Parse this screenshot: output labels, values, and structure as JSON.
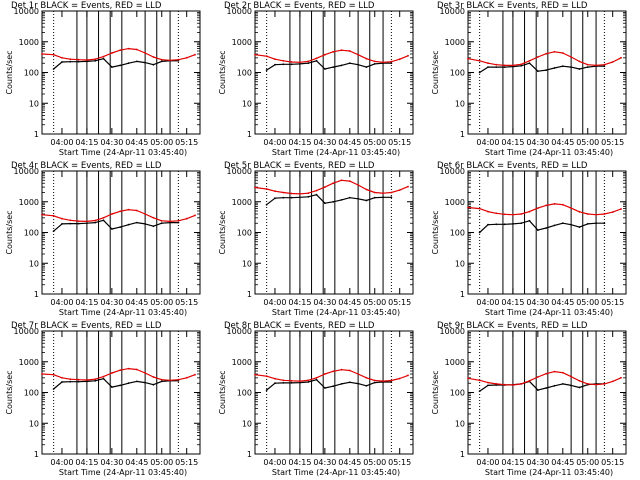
{
  "figure": {
    "colors": {
      "events": "#000000",
      "lld": "#e00000",
      "axes": "#000000"
    },
    "event_markers": [
      "04:09",
      "04:15",
      "04:22",
      "04:29",
      "04:36",
      "04:50",
      "04:57",
      "05:05"
    ],
    "dotted_markers": [
      "03:55",
      "05:10"
    ]
  },
  "chart_data": [
    {
      "type": "line",
      "log_y": true,
      "title": "Det 1r BLACK = Events, RED = LLD",
      "ylabel": "Counts/sec",
      "xlabel": "Start Time (24-Apr-11 03:45:40)",
      "ylim": [
        1,
        10000
      ],
      "xlim": [
        "03:48",
        "05:23"
      ],
      "yticks": [
        "1",
        "10",
        "100",
        "1000",
        "10000"
      ],
      "xticks": [
        "04:00",
        "04:15",
        "04:30",
        "04:45",
        "05:00",
        "05:15"
      ],
      "series": [
        {
          "name": "Events",
          "color": "#000000",
          "x": [
            "03:55",
            "04:00",
            "04:05",
            "04:10",
            "04:15",
            "04:20",
            "04:25",
            "04:30",
            "04:35",
            "04:40",
            "04:45",
            "04:50",
            "04:55",
            "05:00",
            "05:05",
            "05:10"
          ],
          "y": [
            130,
            220,
            225,
            225,
            230,
            240,
            280,
            150,
            170,
            200,
            230,
            210,
            180,
            230,
            240,
            240
          ]
        },
        {
          "name": "LLD",
          "color": "#e00000",
          "x": [
            "03:48",
            "03:55",
            "04:00",
            "04:05",
            "04:10",
            "04:15",
            "04:20",
            "04:25",
            "04:30",
            "04:35",
            "04:40",
            "04:45",
            "04:50",
            "04:55",
            "05:00",
            "05:05",
            "05:10",
            "05:15",
            "05:20"
          ],
          "y": [
            400,
            380,
            300,
            270,
            260,
            255,
            270,
            330,
            430,
            530,
            600,
            560,
            430,
            320,
            260,
            250,
            260,
            300,
            380
          ]
        }
      ]
    },
    {
      "type": "line",
      "log_y": true,
      "title": "Det 2r BLACK = Events, RED = LLD",
      "ylabel": "Counts/sec",
      "xlabel": "Start Time (24-Apr-11 03:45:40)",
      "ylim": [
        1,
        10000
      ],
      "xlim": [
        "03:48",
        "05:23"
      ],
      "yticks": [
        "1",
        "10",
        "100",
        "1000",
        "10000"
      ],
      "xticks": [
        "04:00",
        "04:15",
        "04:30",
        "04:45",
        "05:00",
        "05:15"
      ],
      "series": [
        {
          "name": "Events",
          "color": "#000000",
          "x": [
            "03:55",
            "04:00",
            "04:05",
            "04:10",
            "04:15",
            "04:20",
            "04:25",
            "04:30",
            "04:35",
            "04:40",
            "04:45",
            "04:50",
            "04:55",
            "05:00",
            "05:05",
            "05:10"
          ],
          "y": [
            120,
            180,
            185,
            185,
            190,
            200,
            240,
            130,
            150,
            170,
            200,
            180,
            150,
            190,
            200,
            200
          ]
        },
        {
          "name": "LLD",
          "color": "#e00000",
          "x": [
            "03:48",
            "03:55",
            "04:00",
            "04:05",
            "04:10",
            "04:15",
            "04:20",
            "04:25",
            "04:30",
            "04:35",
            "04:40",
            "04:45",
            "04:50",
            "04:55",
            "05:00",
            "05:05",
            "05:10",
            "05:15",
            "05:20"
          ],
          "y": [
            380,
            340,
            270,
            240,
            220,
            215,
            230,
            290,
            380,
            470,
            530,
            500,
            380,
            280,
            230,
            215,
            225,
            270,
            350
          ]
        }
      ]
    },
    {
      "type": "line",
      "log_y": true,
      "title": "Det 3r BLACK = Events, RED = LLD",
      "ylabel": "Counts/sec",
      "xlabel": "Start Time (24-Apr-11 03:45:40)",
      "ylim": [
        1,
        10000
      ],
      "xlim": [
        "03:48",
        "05:23"
      ],
      "yticks": [
        "1",
        "10",
        "100",
        "1000",
        "10000"
      ],
      "xticks": [
        "04:00",
        "04:15",
        "04:30",
        "04:45",
        "05:00",
        "05:15"
      ],
      "series": [
        {
          "name": "Events",
          "color": "#000000",
          "x": [
            "03:55",
            "04:00",
            "04:05",
            "04:10",
            "04:15",
            "04:20",
            "04:25",
            "04:30",
            "04:35",
            "04:40",
            "04:45",
            "04:50",
            "04:55",
            "05:00",
            "05:05",
            "05:10"
          ],
          "y": [
            100,
            150,
            150,
            150,
            155,
            165,
            200,
            110,
            120,
            140,
            160,
            150,
            130,
            150,
            160,
            160
          ]
        },
        {
          "name": "LLD",
          "color": "#e00000",
          "x": [
            "03:48",
            "03:55",
            "04:00",
            "04:05",
            "04:10",
            "04:15",
            "04:20",
            "04:25",
            "04:30",
            "04:35",
            "04:40",
            "04:45",
            "04:50",
            "04:55",
            "05:00",
            "05:05",
            "05:10",
            "05:15",
            "05:20"
          ],
          "y": [
            280,
            240,
            200,
            180,
            170,
            170,
            185,
            240,
            320,
            410,
            470,
            430,
            320,
            230,
            180,
            170,
            180,
            220,
            300
          ]
        }
      ]
    },
    {
      "type": "line",
      "log_y": true,
      "title": "Det 4r BLACK = Events, RED = LLD",
      "ylabel": "Counts/sec",
      "xlabel": "Start Time (24-Apr-11 03:45:40)",
      "ylim": [
        1,
        10000
      ],
      "xlim": [
        "03:48",
        "05:23"
      ],
      "yticks": [
        "1",
        "10",
        "100",
        "1000",
        "10000"
      ],
      "xticks": [
        "04:00",
        "04:15",
        "04:30",
        "04:45",
        "05:00",
        "05:15"
      ],
      "series": [
        {
          "name": "Events",
          "color": "#000000",
          "x": [
            "03:55",
            "04:00",
            "04:05",
            "04:10",
            "04:15",
            "04:20",
            "04:25",
            "04:30",
            "04:35",
            "04:40",
            "04:45",
            "04:50",
            "04:55",
            "05:00",
            "05:05",
            "05:10"
          ],
          "y": [
            110,
            190,
            195,
            195,
            200,
            210,
            250,
            130,
            150,
            180,
            210,
            190,
            160,
            200,
            210,
            210
          ]
        },
        {
          "name": "LLD",
          "color": "#e00000",
          "x": [
            "03:48",
            "03:55",
            "04:00",
            "04:05",
            "04:10",
            "04:15",
            "04:20",
            "04:25",
            "04:30",
            "04:35",
            "04:40",
            "04:45",
            "04:50",
            "04:55",
            "05:00",
            "05:05",
            "05:10",
            "05:15",
            "05:20"
          ],
          "y": [
            380,
            350,
            280,
            250,
            235,
            230,
            245,
            300,
            400,
            490,
            550,
            520,
            400,
            300,
            240,
            230,
            240,
            280,
            360
          ]
        }
      ]
    },
    {
      "type": "line",
      "log_y": true,
      "title": "Det 5r BLACK = Events, RED = LLD",
      "ylabel": "Counts/sec",
      "xlabel": "Start Time (24-Apr-11 03:45:40)",
      "ylim": [
        1,
        10000
      ],
      "xlim": [
        "03:48",
        "05:23"
      ],
      "yticks": [
        "1",
        "10",
        "100",
        "1000",
        "10000"
      ],
      "xticks": [
        "04:00",
        "04:15",
        "04:30",
        "04:45",
        "05:00",
        "05:15"
      ],
      "series": [
        {
          "name": "Events",
          "color": "#000000",
          "x": [
            "03:55",
            "04:00",
            "04:05",
            "04:10",
            "04:15",
            "04:20",
            "04:25",
            "04:30",
            "04:35",
            "04:40",
            "04:45",
            "04:50",
            "04:55",
            "05:00",
            "05:05",
            "05:10"
          ],
          "y": [
            800,
            1300,
            1350,
            1350,
            1400,
            1450,
            1700,
            900,
            1000,
            1150,
            1350,
            1250,
            1100,
            1350,
            1400,
            1400
          ]
        },
        {
          "name": "LLD",
          "color": "#e00000",
          "x": [
            "03:48",
            "03:55",
            "04:00",
            "04:05",
            "04:10",
            "04:15",
            "04:20",
            "04:25",
            "04:30",
            "04:35",
            "04:40",
            "04:45",
            "04:50",
            "04:55",
            "05:00",
            "05:05",
            "05:10",
            "05:15",
            "05:20"
          ],
          "y": [
            2900,
            2600,
            2200,
            2000,
            1850,
            1800,
            1900,
            2300,
            3000,
            4000,
            5000,
            4700,
            3500,
            2500,
            2000,
            1900,
            2000,
            2400,
            3100
          ]
        }
      ]
    },
    {
      "type": "line",
      "log_y": true,
      "title": "Det 6r BLACK = Events, RED = LLD",
      "ylabel": "Counts/sec",
      "xlabel": "Start Time (24-Apr-11 03:45:40)",
      "ylim": [
        1,
        10000
      ],
      "xlim": [
        "03:48",
        "05:23"
      ],
      "yticks": [
        "1",
        "10",
        "100",
        "1000",
        "10000"
      ],
      "xticks": [
        "04:00",
        "04:15",
        "04:30",
        "04:45",
        "05:00",
        "05:15"
      ],
      "series": [
        {
          "name": "Events",
          "color": "#000000",
          "x": [
            "03:55",
            "04:00",
            "04:05",
            "04:10",
            "04:15",
            "04:20",
            "04:25",
            "04:30",
            "04:35",
            "04:40",
            "04:45",
            "04:50",
            "04:55",
            "05:00",
            "05:05",
            "05:10"
          ],
          "y": [
            100,
            180,
            185,
            185,
            190,
            200,
            240,
            120,
            140,
            170,
            200,
            180,
            150,
            190,
            200,
            200
          ]
        },
        {
          "name": "LLD",
          "color": "#e00000",
          "x": [
            "03:48",
            "03:55",
            "04:00",
            "04:05",
            "04:10",
            "04:15",
            "04:20",
            "04:25",
            "04:30",
            "04:35",
            "04:40",
            "04:45",
            "04:50",
            "04:55",
            "05:00",
            "05:05",
            "05:10",
            "05:15",
            "05:20"
          ],
          "y": [
            650,
            600,
            480,
            420,
            390,
            380,
            400,
            480,
            620,
            760,
            850,
            800,
            620,
            470,
            400,
            380,
            400,
            460,
            580
          ]
        }
      ]
    },
    {
      "type": "line",
      "log_y": true,
      "title": "Det 7r BLACK = Events, RED = LLD",
      "ylabel": "Counts/sec",
      "xlabel": "Start Time (24-Apr-11 03:45:40)",
      "ylim": [
        1,
        10000
      ],
      "xlim": [
        "03:48",
        "05:23"
      ],
      "yticks": [
        "1",
        "10",
        "100",
        "1000",
        "10000"
      ],
      "xticks": [
        "04:00",
        "04:15",
        "04:30",
        "04:45",
        "05:00",
        "05:15"
      ],
      "series": [
        {
          "name": "Events",
          "color": "#000000",
          "x": [
            "03:55",
            "04:00",
            "04:05",
            "04:10",
            "04:15",
            "04:20",
            "04:25",
            "04:30",
            "04:35",
            "04:40",
            "04:45",
            "04:50",
            "04:55",
            "05:00",
            "05:05",
            "05:10"
          ],
          "y": [
            130,
            220,
            225,
            225,
            230,
            240,
            280,
            150,
            170,
            200,
            230,
            210,
            180,
            230,
            240,
            240
          ]
        },
        {
          "name": "LLD",
          "color": "#e00000",
          "x": [
            "03:48",
            "03:55",
            "04:00",
            "04:05",
            "04:10",
            "04:15",
            "04:20",
            "04:25",
            "04:30",
            "04:35",
            "04:40",
            "04:45",
            "04:50",
            "04:55",
            "05:00",
            "05:05",
            "05:10",
            "05:15",
            "05:20"
          ],
          "y": [
            400,
            380,
            300,
            270,
            260,
            255,
            270,
            330,
            430,
            530,
            600,
            560,
            430,
            320,
            260,
            250,
            260,
            300,
            380
          ]
        }
      ]
    },
    {
      "type": "line",
      "log_y": true,
      "title": "Det 8r BLACK = Events, RED = LLD",
      "ylabel": "Counts/sec",
      "xlabel": "Start Time (24-Apr-11 03:45:40)",
      "ylim": [
        1,
        10000
      ],
      "xlim": [
        "03:48",
        "05:23"
      ],
      "yticks": [
        "1",
        "10",
        "100",
        "1000",
        "10000"
      ],
      "xticks": [
        "04:00",
        "04:15",
        "04:30",
        "04:45",
        "05:00",
        "05:15"
      ],
      "series": [
        {
          "name": "Events",
          "color": "#000000",
          "x": [
            "03:55",
            "04:00",
            "04:05",
            "04:10",
            "04:15",
            "04:20",
            "04:25",
            "04:30",
            "04:35",
            "04:40",
            "04:45",
            "04:50",
            "04:55",
            "05:00",
            "05:05",
            "05:10"
          ],
          "y": [
            120,
            200,
            205,
            205,
            210,
            220,
            260,
            140,
            160,
            190,
            215,
            195,
            165,
            210,
            220,
            220
          ]
        },
        {
          "name": "LLD",
          "color": "#e00000",
          "x": [
            "03:48",
            "03:55",
            "04:00",
            "04:05",
            "04:10",
            "04:15",
            "04:20",
            "04:25",
            "04:30",
            "04:35",
            "04:40",
            "04:45",
            "04:50",
            "04:55",
            "05:00",
            "05:05",
            "05:10",
            "05:15",
            "05:20"
          ],
          "y": [
            380,
            340,
            280,
            250,
            240,
            235,
            250,
            300,
            400,
            490,
            550,
            520,
            400,
            300,
            245,
            235,
            245,
            285,
            360
          ]
        }
      ]
    },
    {
      "type": "line",
      "log_y": true,
      "title": "Det 9r BLACK = Events, RED = LLD",
      "ylabel": "Counts/sec",
      "xlabel": "Start Time (24-Apr-11 03:45:40)",
      "ylim": [
        1,
        10000
      ],
      "xlim": [
        "03:48",
        "05:23"
      ],
      "yticks": [
        "1",
        "10",
        "100",
        "1000",
        "10000"
      ],
      "xticks": [
        "04:00",
        "04:15",
        "04:30",
        "04:45",
        "05:00",
        "05:15"
      ],
      "series": [
        {
          "name": "Events",
          "color": "#000000",
          "x": [
            "03:55",
            "04:00",
            "04:05",
            "04:10",
            "04:15",
            "04:20",
            "04:25",
            "04:30",
            "04:35",
            "04:40",
            "04:45",
            "04:50",
            "04:55",
            "05:00",
            "05:05",
            "05:10"
          ],
          "y": [
            110,
            170,
            175,
            175,
            180,
            190,
            230,
            120,
            140,
            165,
            190,
            170,
            145,
            180,
            190,
            190
          ]
        },
        {
          "name": "LLD",
          "color": "#e00000",
          "x": [
            "03:48",
            "03:55",
            "04:00",
            "04:05",
            "04:10",
            "04:15",
            "04:20",
            "04:25",
            "04:30",
            "04:35",
            "04:40",
            "04:45",
            "04:50",
            "04:55",
            "05:00",
            "05:05",
            "05:10",
            "05:15",
            "05:20"
          ],
          "y": [
            290,
            250,
            210,
            190,
            180,
            175,
            190,
            240,
            320,
            410,
            480,
            440,
            330,
            240,
            190,
            180,
            190,
            230,
            300
          ]
        }
      ]
    }
  ]
}
